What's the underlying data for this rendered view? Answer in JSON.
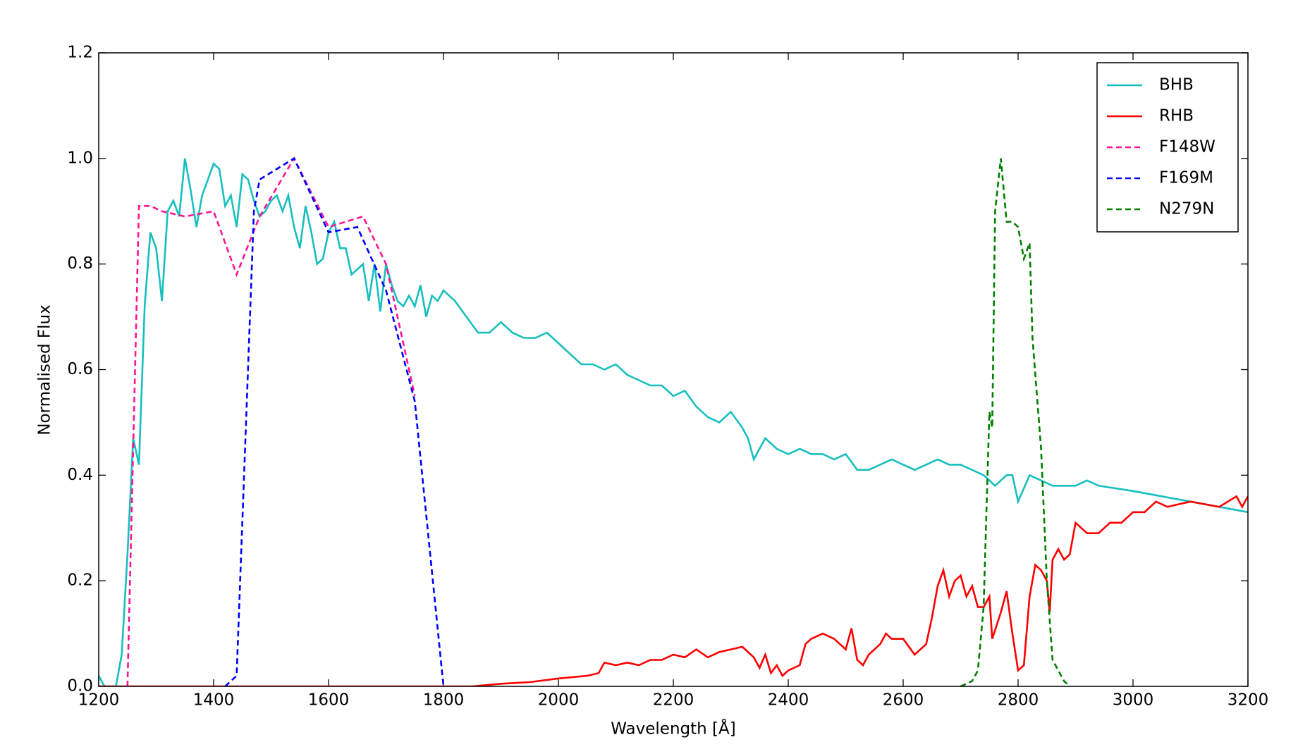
{
  "chart_data": {
    "type": "line",
    "xlabel": "Wavelength [Å]",
    "ylabel": "Normalised Flux",
    "xlim": [
      1200,
      3200
    ],
    "xticks": [
      1200,
      1400,
      1600,
      1800,
      2000,
      2200,
      2400,
      2600,
      2800,
      3000,
      3200
    ],
    "ylim": [
      0,
      1.2
    ],
    "yticks": [
      {
        "value": 0,
        "label": "0.0"
      },
      0.2,
      0.4,
      0.6,
      0.8,
      {
        "value": 1,
        "label": "1.0"
      },
      1.2
    ],
    "legend": "upper right",
    "series": [
      {
        "name": "BHB",
        "color": "#17bfbf",
        "style": "solid",
        "x": [
          1200,
          1210,
          1230,
          1240,
          1250,
          1260,
          1270,
          1280,
          1290,
          1300,
          1310,
          1320,
          1330,
          1340,
          1350,
          1360,
          1370,
          1380,
          1390,
          1400,
          1410,
          1420,
          1430,
          1440,
          1450,
          1460,
          1470,
          1480,
          1490,
          1500,
          1510,
          1520,
          1530,
          1540,
          1550,
          1560,
          1570,
          1580,
          1590,
          1600,
          1610,
          1620,
          1630,
          1640,
          1650,
          1660,
          1670,
          1680,
          1690,
          1700,
          1710,
          1720,
          1730,
          1740,
          1750,
          1760,
          1770,
          1780,
          1790,
          1800,
          1820,
          1840,
          1860,
          1880,
          1900,
          1920,
          1940,
          1960,
          1980,
          2000,
          2020,
          2040,
          2060,
          2080,
          2100,
          2120,
          2140,
          2160,
          2180,
          2200,
          2220,
          2240,
          2260,
          2280,
          2300,
          2320,
          2330,
          2340,
          2360,
          2380,
          2400,
          2420,
          2440,
          2460,
          2480,
          2500,
          2520,
          2540,
          2560,
          2580,
          2600,
          2620,
          2640,
          2660,
          2680,
          2700,
          2720,
          2740,
          2760,
          2780,
          2790,
          2800,
          2820,
          2840,
          2860,
          2880,
          2900,
          2920,
          2940,
          3000,
          3050,
          3100,
          3150,
          3200
        ],
        "values": [
          0.02,
          0.0,
          0.0,
          0.06,
          0.25,
          0.47,
          0.42,
          0.72,
          0.86,
          0.83,
          0.73,
          0.9,
          0.92,
          0.89,
          1.0,
          0.94,
          0.87,
          0.93,
          0.96,
          0.99,
          0.98,
          0.91,
          0.93,
          0.87,
          0.97,
          0.96,
          0.92,
          0.89,
          0.9,
          0.92,
          0.93,
          0.9,
          0.93,
          0.87,
          0.83,
          0.91,
          0.86,
          0.8,
          0.81,
          0.86,
          0.88,
          0.83,
          0.83,
          0.78,
          0.79,
          0.8,
          0.73,
          0.8,
          0.71,
          0.8,
          0.76,
          0.73,
          0.72,
          0.74,
          0.72,
          0.76,
          0.7,
          0.74,
          0.73,
          0.75,
          0.73,
          0.7,
          0.67,
          0.67,
          0.69,
          0.67,
          0.66,
          0.66,
          0.67,
          0.65,
          0.63,
          0.61,
          0.61,
          0.6,
          0.61,
          0.59,
          0.58,
          0.57,
          0.57,
          0.55,
          0.56,
          0.53,
          0.51,
          0.5,
          0.52,
          0.49,
          0.47,
          0.43,
          0.47,
          0.45,
          0.44,
          0.45,
          0.44,
          0.44,
          0.43,
          0.44,
          0.41,
          0.41,
          0.42,
          0.43,
          0.42,
          0.41,
          0.42,
          0.43,
          0.42,
          0.42,
          0.41,
          0.4,
          0.38,
          0.4,
          0.4,
          0.35,
          0.4,
          0.39,
          0.38,
          0.38,
          0.38,
          0.39,
          0.38,
          0.37,
          0.36,
          0.35,
          0.34,
          0.33
        ]
      },
      {
        "name": "RHB",
        "color": "#ff0000",
        "style": "solid",
        "x": [
          1200,
          1800,
          1850,
          1900,
          1950,
          2000,
          2050,
          2070,
          2080,
          2100,
          2120,
          2140,
          2160,
          2180,
          2200,
          2220,
          2240,
          2260,
          2280,
          2300,
          2320,
          2340,
          2350,
          2360,
          2370,
          2380,
          2390,
          2400,
          2420,
          2430,
          2440,
          2460,
          2480,
          2500,
          2510,
          2520,
          2530,
          2540,
          2560,
          2570,
          2580,
          2600,
          2620,
          2640,
          2650,
          2660,
          2670,
          2680,
          2690,
          2700,
          2710,
          2720,
          2730,
          2740,
          2750,
          2755,
          2770,
          2780,
          2790,
          2800,
          2810,
          2820,
          2830,
          2840,
          2850,
          2855,
          2860,
          2870,
          2880,
          2890,
          2900,
          2920,
          2940,
          2960,
          2980,
          3000,
          3020,
          3040,
          3060,
          3080,
          3100,
          3150,
          3180,
          3190,
          3200
        ],
        "values": [
          0,
          0,
          0.0,
          0.005,
          0.008,
          0.015,
          0.02,
          0.025,
          0.045,
          0.04,
          0.045,
          0.04,
          0.05,
          0.05,
          0.06,
          0.055,
          0.07,
          0.055,
          0.065,
          0.07,
          0.075,
          0.055,
          0.035,
          0.06,
          0.025,
          0.04,
          0.02,
          0.03,
          0.04,
          0.08,
          0.09,
          0.1,
          0.09,
          0.07,
          0.11,
          0.05,
          0.04,
          0.06,
          0.08,
          0.1,
          0.09,
          0.09,
          0.06,
          0.08,
          0.13,
          0.19,
          0.22,
          0.17,
          0.2,
          0.21,
          0.17,
          0.19,
          0.15,
          0.15,
          0.17,
          0.09,
          0.14,
          0.18,
          0.1,
          0.03,
          0.04,
          0.17,
          0.23,
          0.22,
          0.2,
          0.14,
          0.24,
          0.26,
          0.24,
          0.25,
          0.31,
          0.29,
          0.29,
          0.31,
          0.31,
          0.33,
          0.33,
          0.35,
          0.34,
          0.345,
          0.35,
          0.34,
          0.36,
          0.34,
          0.36
        ]
      },
      {
        "name": "F148W",
        "color": "#ff1493",
        "style": "dashed",
        "x": [
          1250,
          1270,
          1290,
          1310,
          1350,
          1400,
          1440,
          1480,
          1540,
          1600,
          1660,
          1700,
          1750
        ],
        "values": [
          0,
          0.91,
          0.91,
          0.9,
          0.89,
          0.9,
          0.78,
          0.89,
          1.0,
          0.87,
          0.89,
          0.8,
          0.55
        ]
      },
      {
        "name": "F169M",
        "color": "#0000ff",
        "style": "dashed",
        "x": [
          1420,
          1440,
          1470,
          1480,
          1540,
          1600,
          1650,
          1700,
          1750,
          1800
        ],
        "values": [
          0,
          0.02,
          0.9,
          0.96,
          1.0,
          0.86,
          0.87,
          0.75,
          0.54,
          0
        ]
      },
      {
        "name": "N279N",
        "color": "#008000",
        "style": "dashed",
        "x": [
          2700,
          2720,
          2730,
          2740,
          2750,
          2755,
          2760,
          2770,
          2780,
          2790,
          2800,
          2810,
          2820,
          2825,
          2840,
          2850,
          2860,
          2880,
          2890
        ],
        "values": [
          0,
          0.01,
          0.03,
          0.15,
          0.52,
          0.49,
          0.9,
          1.0,
          0.88,
          0.88,
          0.87,
          0.81,
          0.84,
          0.66,
          0.45,
          0.2,
          0.05,
          0.01,
          0
        ]
      }
    ]
  }
}
